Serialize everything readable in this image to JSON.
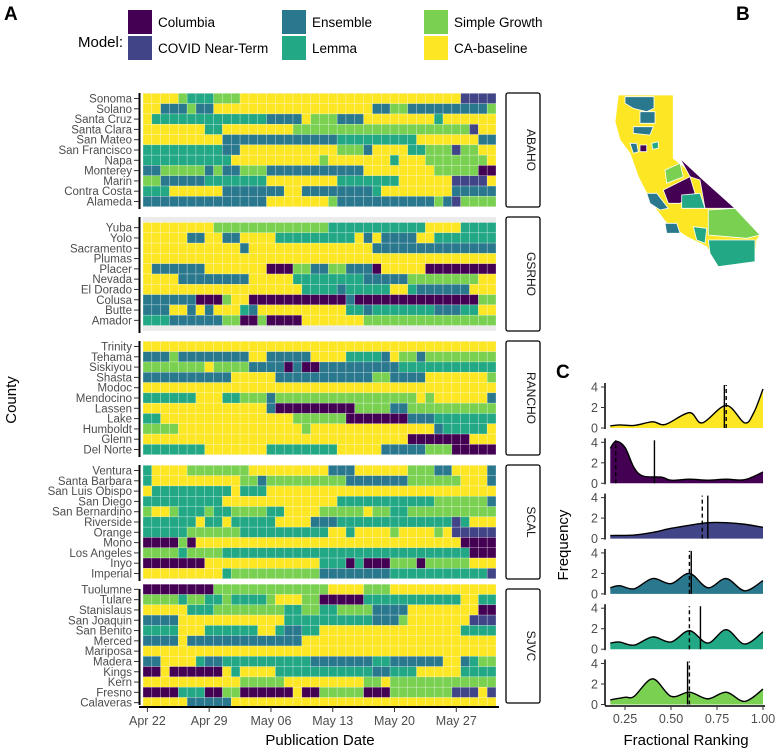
{
  "panel_labels": {
    "a": "A",
    "b": "B",
    "c": "C"
  },
  "legend": {
    "title": "Model:",
    "items": [
      {
        "code": "C",
        "label": "Columbia",
        "color": "#440154"
      },
      {
        "code": "N",
        "label": "COVID Near-Term",
        "color": "#414487"
      },
      {
        "code": "E",
        "label": "Ensemble",
        "color": "#2A788E"
      },
      {
        "code": "L",
        "label": "Lemma",
        "color": "#22A884"
      },
      {
        "code": "S",
        "label": "Simple Growth",
        "color": "#7AD151"
      },
      {
        "code": "Y",
        "label": "CA-baseline",
        "color": "#FDE725"
      }
    ]
  },
  "chart_data": [
    {
      "type": "heatmap",
      "title": "",
      "xlabel": "Publication Date",
      "ylabel": "County",
      "n_days": 40,
      "first_day": "Apr 22",
      "x_ticks": [
        {
          "label": "Apr 22",
          "day_index": 0
        },
        {
          "label": "Apr 29",
          "day_index": 7
        },
        {
          "label": "May 06",
          "day_index": 14
        },
        {
          "label": "May 13",
          "day_index": 21
        },
        {
          "label": "May 20",
          "day_index": 28
        },
        {
          "label": "May 27",
          "day_index": 35
        }
      ],
      "encoding": "run-length: model code + number of consecutive days",
      "regions": [
        {
          "name": "ABAHO",
          "rows": [
            {
              "county": "Sonoma",
              "runs": "Y4 S1 L3 S3 Y25 N4"
            },
            {
              "county": "Solano",
              "runs": "Y2 E3 S1 E2 Y18 E2 S2 E9 S1"
            },
            {
              "county": "Santa Cruz",
              "runs": "Y1 L13 E4 Y1 S3 E3 Y8 L1 Y6"
            },
            {
              "county": "Santa Clara",
              "runs": "Y7 L2 Y8 S20 N1 Y2"
            },
            {
              "county": "San Mateo",
              "runs": "Y9 E13 L9 Y7 E2"
            },
            {
              "county": "San Francisco",
              "runs": "L9 E2 Y11 S3 E1 Y4 L2 S3 N1 S2 Y2"
            },
            {
              "county": "Napa",
              "runs": "L10 Y10 S1 Y7 L1 Y3 S7 Y1"
            },
            {
              "county": "Monterey",
              "runs": "E2 S5 E1 S1 E2 S3 E11 Y8 S5 C2"
            },
            {
              "county": "Marin",
              "runs": "S2 E5 L7 Y8 L7 Y6 N4 Y1"
            },
            {
              "county": "Contra Costa",
              "runs": "L3 Y6 E7 Y2 E8 L1 Y8 E5"
            },
            {
              "county": "Alameda",
              "runs": "E14 Y7 S1 E11 S1 E1 N1 S4"
            }
          ]
        },
        {
          "name": "GSRHO",
          "rows": [
            {
              "county": "Yuba",
              "runs": "Y8 S13 L11 Y4 L4"
            },
            {
              "county": "Yolo",
              "runs": "Y5 E2 Y2 E2 Y4 L9 Y1 E1 Y1 E4 Y2 L7"
            },
            {
              "county": "Sacramento",
              "runs": "Y11 E1 Y14 E14"
            },
            {
              "county": "Plumas",
              "runs": "Y40"
            },
            {
              "county": "Placer",
              "runs": "Y1 E6 Y7 C3 S2 E2 S2 E3 C1 Y5 C8"
            },
            {
              "county": "Nevada",
              "runs": "Y4 E8 Y5 L8 E5 S8 Y2"
            },
            {
              "county": "El Dorado",
              "runs": "Y18 L4 E1 L5 Y2 L1 E6 Y3"
            },
            {
              "county": "Colusa",
              "runs": "E6 C3 S1 Y2 C11 E1 C14 S2"
            },
            {
              "county": "Butte",
              "runs": "E3 Y2 E1 Y1 E1 Y3 L1 E1 Y10 L2 E1 L7 E3 L2 Y2"
            },
            {
              "county": "Amador",
              "runs": "L3 E6 S2 C2 S1 C4 Y7 S15"
            }
          ]
        },
        {
          "name": "RANCHO",
          "rows": [
            {
              "county": "Trinity",
              "runs": "Y40"
            },
            {
              "county": "Tehama",
              "runs": "E3 S1 E8 Y2 E5 Y4 L4 E1 Y1 S2 E1 S8"
            },
            {
              "county": "Siskiyou",
              "runs": "S7 Y1 S4 E4 C1 E1 C2 E9 L11"
            },
            {
              "county": "Shasta",
              "runs": "E10 Y5 E11 S2 E4 Y7 S1"
            },
            {
              "county": "Modoc",
              "runs": "Y40"
            },
            {
              "county": "Mendocino",
              "runs": "L6 Y3 L2 S3 E1 S16 Y1 S1 Y6 E1"
            },
            {
              "county": "Lassen",
              "runs": "Y14 E1 C9 S4 E2 S10"
            },
            {
              "county": "Lake",
              "runs": "L2 Y15 S6 C7 E3 L7"
            },
            {
              "county": "Humboldt",
              "runs": "S4 Y14 S1 Y14 E1 L5 Y1"
            },
            {
              "county": "Glenn",
              "runs": "Y30 C7 Y3"
            },
            {
              "county": "Del Norte",
              "runs": "L7 Y7 L8 Y5 E5 S3 C5"
            }
          ]
        },
        {
          "name": "SCAL",
          "rows": [
            {
              "county": "Ventura",
              "runs": "L1 Y4 S7 Y9 E3 Y6 S3 E2 Y4 E1"
            },
            {
              "county": "Santa Barbara",
              "runs": "L1 Y10 S2 E1 S9 E7 S6 Y3 E1"
            },
            {
              "county": "San Luis Obispo",
              "runs": "Y1 L9 Y1 L3 Y26"
            },
            {
              "county": "San Diego",
              "runs": "L9 Y13 L11 S6 E1"
            },
            {
              "county": "San Bernardino",
              "runs": "S1 Y2 S1 L3 S1 L2 S4 L2 Y4 S5 Y1 S2 L2 S10"
            },
            {
              "county": "Riverside",
              "runs": "L6 Y1 L2 Y1 L5 Y4 E3 L13 N1 L1 Y3"
            },
            {
              "county": "Orange",
              "runs": "L5 S6 L10 Y2 L1 Y4 S1 Y4 S1 Y1 N5"
            },
            {
              "county": "Mono",
              "runs": "C4 S1 C1 Y30 C4"
            },
            {
              "county": "Los Angeles",
              "runs": "S4 L1 S4 L28 C3"
            },
            {
              "county": "Inyo",
              "runs": "C7 Y13 L3 C1 L1 C3 S3 C1 S5 Y3"
            },
            {
              "county": "Imperial",
              "runs": "Y9 L1 S10 E8 L11 N1"
            }
          ]
        },
        {
          "name": "SJVC",
          "rows": [
            {
              "county": "Tuolumne",
              "runs": "C8 S13 Y4 S3 Y12"
            },
            {
              "county": "Tulare",
              "runs": "S4 L1 S2 L2 S1 L4 S1 Y3 S2 C5 L11 Y2 L2"
            },
            {
              "county": "Stanislaus",
              "runs": "Y5 L3 S8 L2 S2 L2 S4 E4 Y8 C2"
            },
            {
              "county": "San Joaquin",
              "runs": "E4 Y12 L10 E3 S1 Y7 N3"
            },
            {
              "county": "San Benito",
              "runs": "L4 Y3 L6 Y2 L1 E2 L2 Y16 L4"
            },
            {
              "county": "Merced",
              "runs": "E4 Y1 E13 Y22"
            },
            {
              "county": "Mariposa",
              "runs": "Y40"
            },
            {
              "county": "Madera",
              "runs": "E2 Y4 L1 E2 L10 E7 L2 E6 Y2 E1 L1 S2"
            },
            {
              "county": "Kings",
              "runs": "C2 Y1 C6 Y1 L1 Y4 L11 E2 L3 Y5 L4"
            },
            {
              "county": "Kern",
              "runs": "Y11 S5 Y9 S2 Y1 S12"
            },
            {
              "county": "Fresno",
              "runs": "C4 L3 C2 S2 C6 Y1 C2 S5 C3 S7 N3 Y1 N1"
            },
            {
              "county": "Calaveras",
              "runs": "Y5 E5 Y30"
            }
          ]
        }
      ]
    },
    {
      "type": "area",
      "title": "",
      "xlabel": "Fractional Ranking",
      "ylabel": "Frequency",
      "xlim": [
        0.17,
        1.0
      ],
      "ylim": [
        0,
        4.2
      ],
      "x_ticks": [
        "0.25",
        "0.50",
        "0.75",
        "1.00"
      ],
      "x_tick_values": [
        0.25,
        0.5,
        0.75,
        1.0
      ],
      "y_ticks": [
        "0",
        "2",
        "4"
      ],
      "y_tick_values": [
        0,
        2,
        4
      ],
      "series": [
        {
          "model": "CA-baseline",
          "code": "Y",
          "mean": 0.79,
          "median": 0.8,
          "x": [
            0.17,
            0.22,
            0.3,
            0.4,
            0.47,
            0.6,
            0.67,
            0.8,
            0.9,
            0.95,
            1.0
          ],
          "y": [
            0.2,
            0.3,
            0.25,
            0.6,
            0.35,
            1.5,
            0.5,
            2.2,
            0.5,
            1.5,
            3.8
          ]
        },
        {
          "model": "Columbia",
          "code": "C",
          "mean": 0.41,
          "median": 0.2,
          "x": [
            0.17,
            0.2,
            0.25,
            0.3,
            0.35,
            0.45,
            0.5,
            0.6,
            0.7,
            0.8,
            0.9,
            1.0
          ],
          "y": [
            3.4,
            4.1,
            3.5,
            1.5,
            0.7,
            0.6,
            0.3,
            0.4,
            0.3,
            0.4,
            0.35,
            1.1
          ]
        },
        {
          "model": "COVID Near-Term",
          "code": "N",
          "mean": 0.7,
          "median": 0.67,
          "x": [
            0.17,
            0.3,
            0.4,
            0.5,
            0.6,
            0.7,
            0.8,
            0.9,
            1.0
          ],
          "y": [
            0.3,
            0.35,
            0.6,
            1.0,
            1.3,
            1.55,
            1.55,
            1.4,
            1.1
          ]
        },
        {
          "model": "Ensemble",
          "code": "E",
          "mean": 0.61,
          "median": 0.6,
          "x": [
            0.17,
            0.22,
            0.3,
            0.4,
            0.5,
            0.6,
            0.7,
            0.8,
            0.9,
            1.0
          ],
          "y": [
            0.6,
            0.8,
            0.5,
            1.5,
            1.0,
            2.0,
            0.6,
            1.5,
            0.3,
            1.3
          ]
        },
        {
          "model": "Lemma",
          "code": "L",
          "mean": 0.66,
          "median": 0.6,
          "x": [
            0.17,
            0.22,
            0.3,
            0.4,
            0.5,
            0.6,
            0.7,
            0.8,
            0.9,
            1.0
          ],
          "y": [
            0.6,
            0.7,
            0.4,
            1.2,
            0.7,
            1.8,
            0.6,
            1.9,
            0.5,
            1.7
          ]
        },
        {
          "model": "Simple Growth",
          "code": "S",
          "mean": 0.59,
          "median": 0.6,
          "x": [
            0.17,
            0.25,
            0.3,
            0.4,
            0.5,
            0.6,
            0.7,
            0.8,
            0.9,
            1.0
          ],
          "y": [
            0.45,
            0.7,
            0.8,
            2.5,
            0.8,
            1.2,
            0.55,
            1.2,
            0.3,
            1.5
          ]
        }
      ]
    }
  ]
}
